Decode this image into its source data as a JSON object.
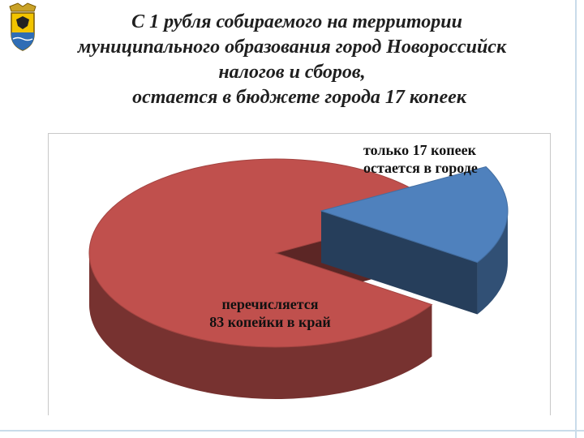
{
  "slide": {
    "title_lines": [
      "С 1 рубля собираемого на территории",
      "муниципального образования город Новороссийск",
      "налогов и сборов,",
      "остается в бюджете города   17 копеек"
    ]
  },
  "colors": {
    "small_slice": "#4f81bd",
    "large_slice": "#c0504d",
    "frame": "#c8c8c8"
  },
  "icons": {
    "emblem": "city-coat-of-arms-icon"
  },
  "chart_data": {
    "type": "pie",
    "style": "3d-exploded",
    "title": "",
    "unit": "копеек",
    "slices": [
      {
        "value": 17,
        "color": "#4f81bd",
        "label_lines": [
          "только 17 копеек",
          "остается в городе"
        ]
      },
      {
        "value": 83,
        "color": "#c0504d",
        "label_lines": [
          "перечисляется",
          "83 копейки  в край"
        ]
      }
    ],
    "legend": "none"
  }
}
